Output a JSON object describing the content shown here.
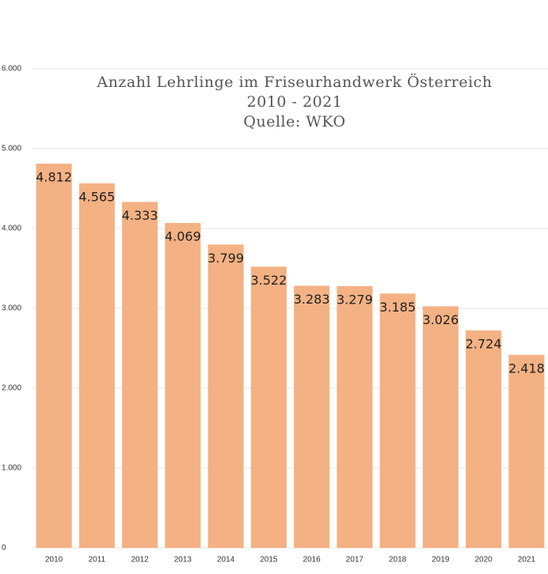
{
  "chart_data": {
    "type": "bar",
    "title": [
      "Anzahl Lehrlinge im Friseurhandwerk Österreich",
      "2010 - 2021",
      "Quelle: WKO"
    ],
    "categories": [
      "2010",
      "2011",
      "2012",
      "2013",
      "2014",
      "2015",
      "2016",
      "2017",
      "2018",
      "2019",
      "2020",
      "2021"
    ],
    "values": [
      4812,
      4565,
      4333,
      4069,
      3799,
      3522,
      3283,
      3279,
      3185,
      3026,
      2724,
      2418
    ],
    "value_labels": [
      "4.812",
      "4.565",
      "4.333",
      "4.069",
      "3.799",
      "3.522",
      "3.283",
      "3.279",
      "3.185",
      "3.026",
      "2.724",
      "2.418"
    ],
    "color": "#f4b183",
    "ylim": [
      0,
      6000
    ],
    "yticks": [
      0,
      {
        "value": 1000,
        "label": "1.000"
      },
      {
        "value": 2000,
        "label": "2.000"
      },
      {
        "value": 3000,
        "label": "3.000"
      },
      {
        "value": 4000,
        "label": "4.000"
      },
      {
        "value": 5000,
        "label": "5.000"
      },
      {
        "value": 6000,
        "label": "6.000"
      }
    ],
    "grid": true
  }
}
